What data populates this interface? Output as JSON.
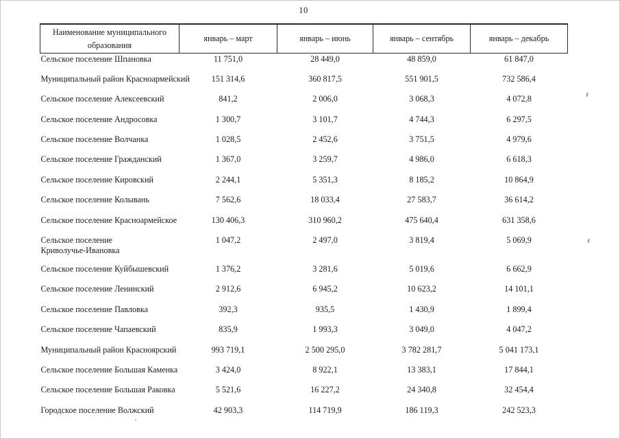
{
  "page": {
    "number": "10"
  },
  "table": {
    "columns": [
      "Наименование муниципального\nобразования",
      "январь – март",
      "январь – июнь",
      "январь – сентябрь",
      "январь – декабрь"
    ],
    "rows": [
      {
        "name": "Сельское поселение Шпановка",
        "values": [
          "11 751,0",
          "28 449,0",
          "48 859,0",
          "61 847,0"
        ]
      },
      {
        "name": "Муниципальный район Красноармейский",
        "values": [
          "151 314,6",
          "360 817,5",
          "551 901,5",
          "732 586,4"
        ]
      },
      {
        "name": "Сельское поселение Алексеевский",
        "values": [
          "841,2",
          "2 006,0",
          "3 068,3",
          "4 072,8"
        ]
      },
      {
        "name": "Сельское поселение Андросовка",
        "values": [
          "1 300,7",
          "3 101,7",
          "4 744,3",
          "6 297,5"
        ]
      },
      {
        "name": "Сельское поселение Волчанка",
        "values": [
          "1 028,5",
          "2 452,6",
          "3 751,5",
          "4 979,6"
        ]
      },
      {
        "name": "Сельское поселение Гражданский",
        "values": [
          "1 367,0",
          "3 259,7",
          "4 986,0",
          "6 618,3"
        ]
      },
      {
        "name": "Сельское поселение Кировский",
        "values": [
          "2 244,1",
          "5 351,3",
          "8 185,2",
          "10 864,9"
        ]
      },
      {
        "name": "Сельское поселение Колывань",
        "values": [
          "7 562,6",
          "18 033,4",
          "27 583,7",
          "36 614,2"
        ]
      },
      {
        "name": "Сельское поселение Красноармейское",
        "values": [
          "130 406,3",
          "310 960,2",
          "475 640,4",
          "631 358,6"
        ]
      },
      {
        "name": "Сельское поселение\nКриволучье-Ивановка",
        "values": [
          "1 047,2",
          "2 497,0",
          "3 819,4",
          "5 069,9"
        ]
      },
      {
        "name": "Сельское поселение Куйбышевский",
        "values": [
          "1 376,2",
          "3 281,6",
          "5 019,6",
          "6 662,9"
        ]
      },
      {
        "name": "Сельское поселение Ленинский",
        "values": [
          "2 912,6",
          "6 945,2",
          "10 623,2",
          "14 101,1"
        ]
      },
      {
        "name": "Сельское поселение Павловка",
        "values": [
          "392,3",
          "935,5",
          "1 430,9",
          "1 899,4"
        ]
      },
      {
        "name": "Сельское поселение Чапаевский",
        "values": [
          "835,9",
          "1 993,3",
          "3 049,0",
          "4 047,2"
        ]
      },
      {
        "name": "Муниципальный район Красноярский",
        "values": [
          "993 719,1",
          "2 500 295,0",
          "3 782 281,7",
          "5 041 173,1"
        ]
      },
      {
        "name": "Сельское поселение Большая Каменка",
        "values": [
          "3 424,0",
          "8 922,1",
          "13 383,1",
          "17 844,1"
        ]
      },
      {
        "name": "Сельское поселение Большая Раковка",
        "values": [
          "5 521,6",
          "16 227,2",
          "24 340,8",
          "32 454,4"
        ]
      },
      {
        "name": "Городское поселение Волжский",
        "values": [
          "42 903,3",
          "114 719,9",
          "186 119,3",
          "242 523,3"
        ]
      }
    ]
  },
  "colors": {
    "ink": "#1b1b1b",
    "table_border": "#2a2a2a",
    "paper": "#ffffff"
  }
}
